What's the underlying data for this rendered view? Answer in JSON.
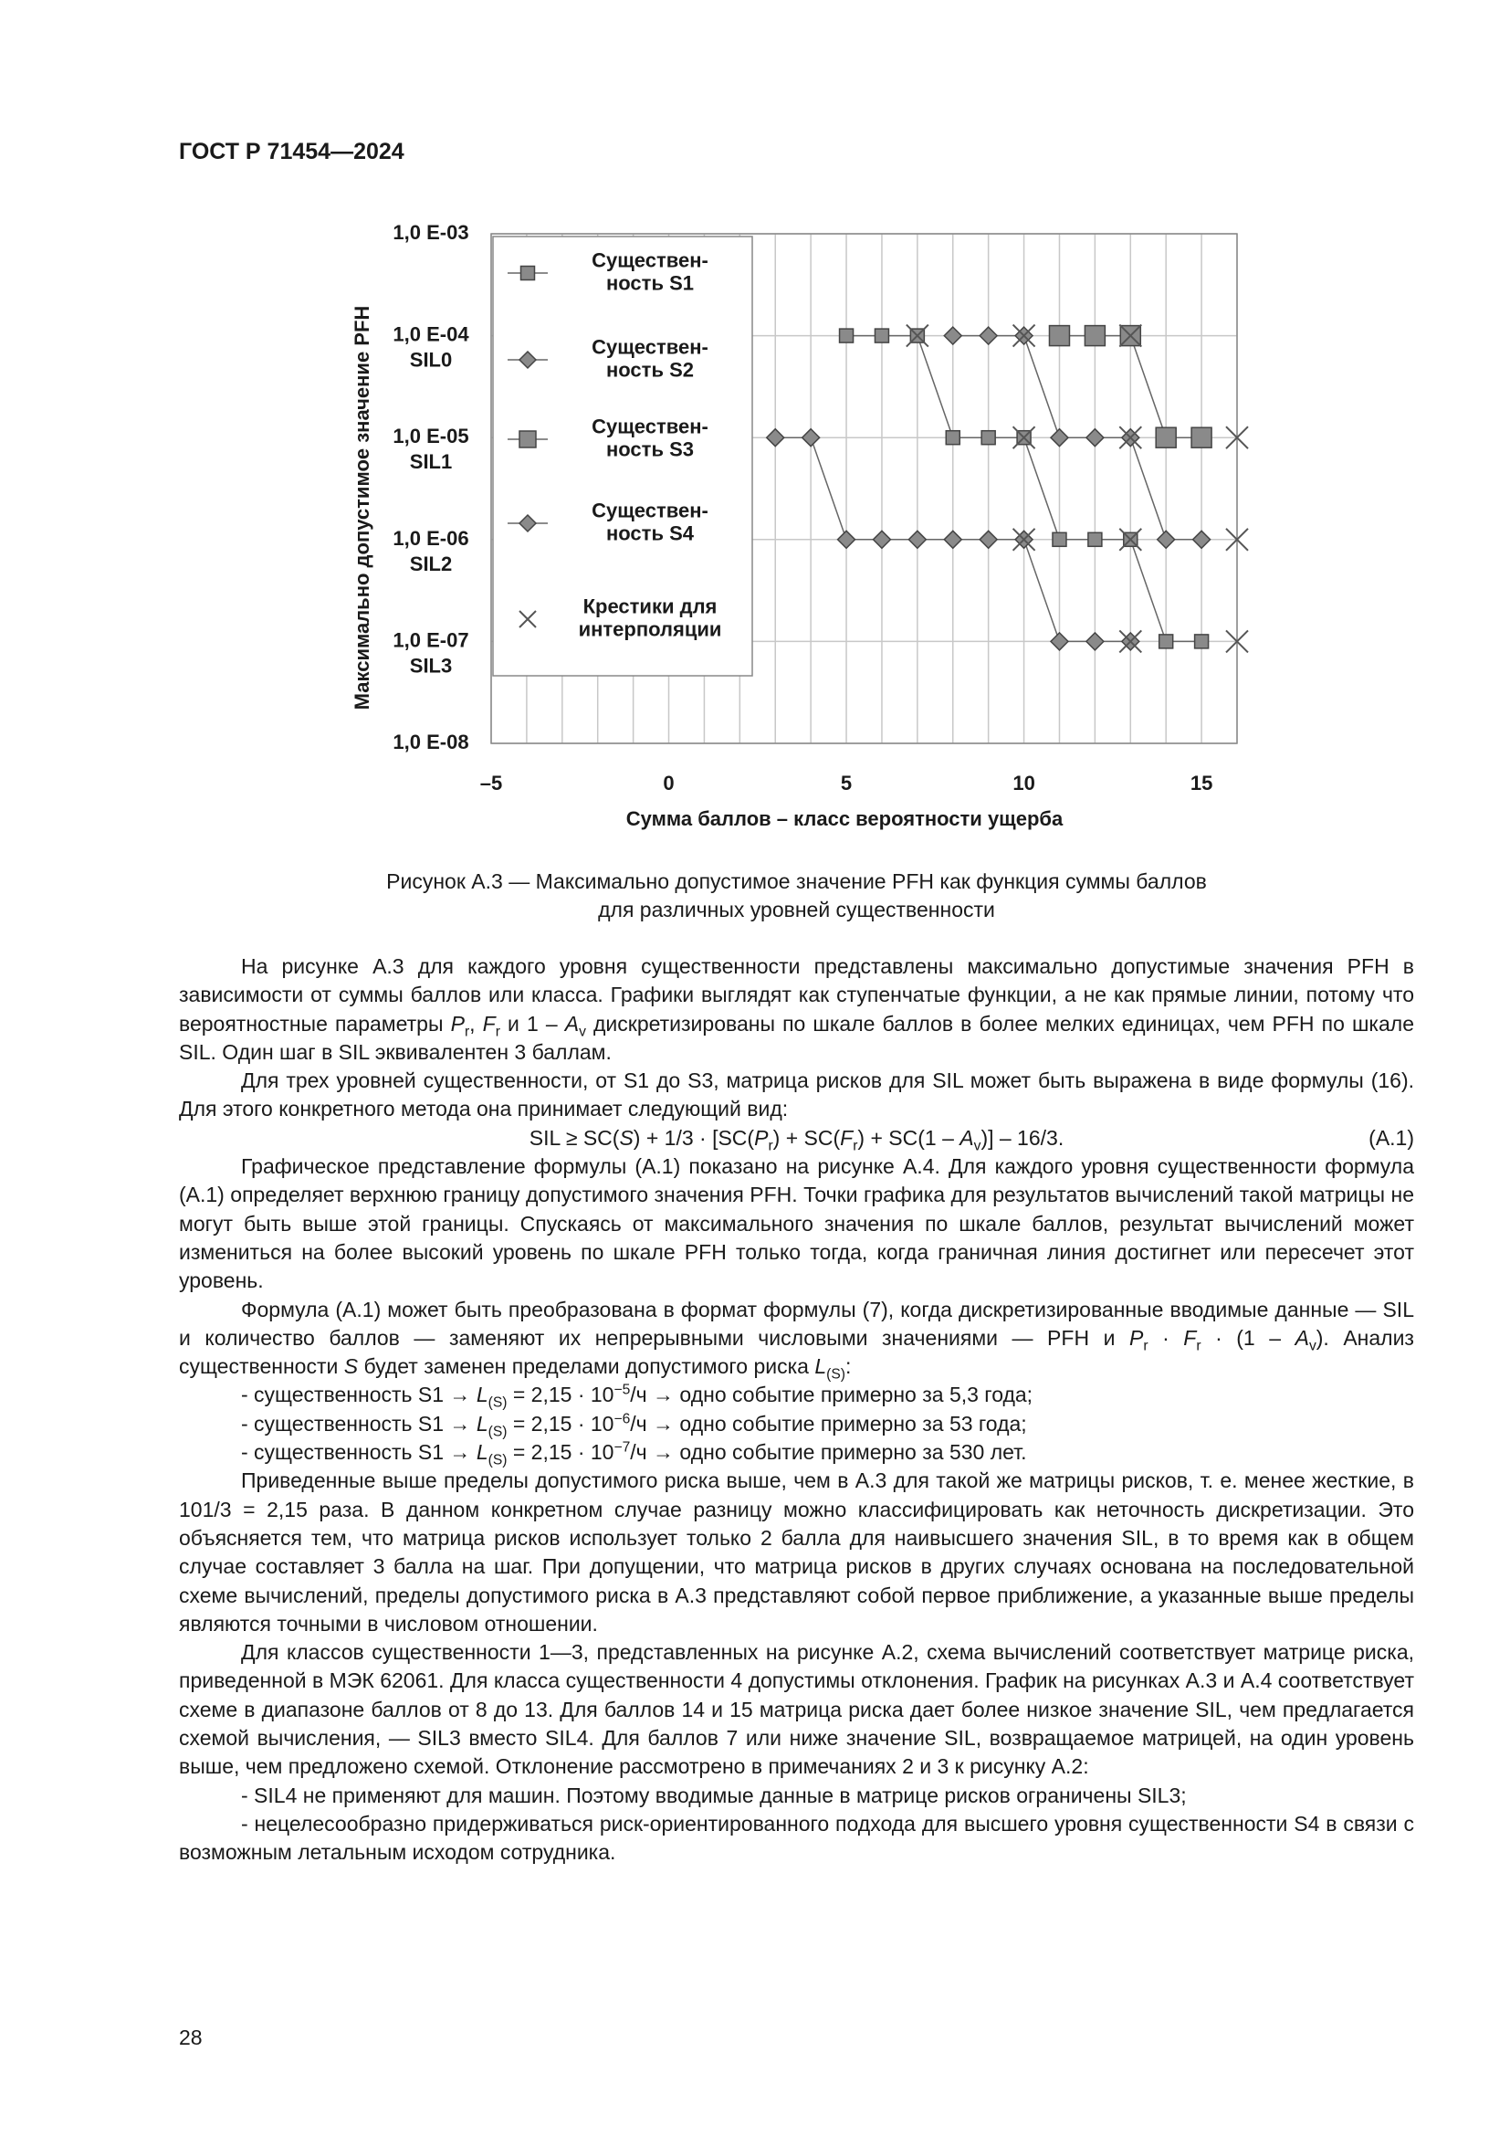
{
  "header": {
    "title": "ГОСТ Р 71454—2024"
  },
  "chart_data": {
    "type": "line",
    "y_label": "Максимально допустимое значение PFH",
    "x_label": "Сумма баллов – класс вероятности ущерба",
    "log_y": true,
    "xlim": [
      -5,
      16
    ],
    "ylim": [
      1e-08,
      0.001
    ],
    "xticks": [
      {
        "value": -5,
        "label": "–5"
      },
      0,
      5,
      10,
      15
    ],
    "yticks": [
      {
        "value": 0.001,
        "label": "1,0 E-03"
      },
      {
        "value": 0.0001,
        "label": "1,0 E-04\nSIL0"
      },
      {
        "value": 1e-05,
        "label": "1,0 E-05\nSIL1"
      },
      {
        "value": 1e-06,
        "label": "1,0 E-06\nSIL2"
      },
      {
        "value": 1e-07,
        "label": "1,0 E-07\nSIL3"
      },
      {
        "value": 1e-08,
        "label": "1,0 E-08"
      }
    ],
    "grid": true,
    "xgrid_step": 1,
    "legend": "upper left",
    "series": [
      {
        "name": "Существен-\nность S1",
        "color": "#8a8a8a",
        "marker": "square",
        "marker_size": 15,
        "line": true,
        "x": [
          5,
          6,
          7,
          8,
          9,
          10,
          11,
          12,
          13,
          14,
          15
        ],
        "values": [
          0.0001,
          0.0001,
          0.0001,
          1e-05,
          1e-05,
          1e-05,
          1e-06,
          1e-06,
          1e-06,
          1e-07,
          1e-07
        ]
      },
      {
        "name": "Существен-\nность S2",
        "color": "#8a8a8a",
        "marker": "diamond",
        "marker_size": 19,
        "line": true,
        "x": [
          8,
          9,
          10,
          11,
          12,
          13,
          14,
          15
        ],
        "values": [
          0.0001,
          0.0001,
          0.0001,
          1e-05,
          1e-05,
          1e-05,
          1e-06,
          1e-06
        ]
      },
      {
        "name": "Существен-\nность S3",
        "color": "#8a8a8a",
        "marker": "square",
        "marker_size": 22,
        "line": true,
        "x": [
          11,
          12,
          13,
          14,
          15
        ],
        "values": [
          0.0001,
          0.0001,
          0.0001,
          1e-05,
          1e-05
        ]
      },
      {
        "name": "Существен-\nность S4",
        "color": "#8a8a8a",
        "marker": "diamond",
        "marker_size": 19,
        "line": true,
        "x": [
          3,
          4,
          5,
          6,
          7,
          8,
          9,
          10,
          11,
          12,
          13
        ],
        "values": [
          1e-05,
          1e-05,
          1e-06,
          1e-06,
          1e-06,
          1e-06,
          1e-06,
          1e-06,
          1e-07,
          1e-07,
          1e-07
        ]
      },
      {
        "name": "Крестики для\nинтерполяции",
        "color": "#555555",
        "marker": "x",
        "marker_size": 24,
        "line": false,
        "x": [
          7,
          10,
          13,
          10,
          13,
          16,
          10,
          13,
          16,
          13,
          16
        ],
        "values": [
          0.0001,
          0.0001,
          0.0001,
          1e-05,
          1e-05,
          1e-05,
          1e-06,
          1e-06,
          1e-06,
          1e-07,
          1e-07
        ]
      }
    ]
  },
  "caption": [
    "Рисунок А.3 — Максимально допустимое значение PFH как функция суммы баллов",
    "для различных уровней существенности"
  ],
  "body": [
    {
      "runs": [
        "На рисунке А.3 для каждого уровня существенности представлены максимально допустимые значения PFH в зависимости от суммы баллов или класса. Графики выглядят как ступенчатые функции, а не как прямые линии, потому что вероятностные параметры ",
        {
          "i": "P"
        },
        {
          "sub": "r"
        },
        ", ",
        {
          "i": "F"
        },
        {
          "sub": "r"
        },
        " и 1 – ",
        {
          "i": "A"
        },
        {
          "sub": "v"
        },
        " дискретизированы по шкале баллов в более мелких единицах, чем PFH по шкале SIL. Один шаг в SIL эквивалентен 3 баллам."
      ]
    },
    {
      "runs": [
        "Для трех уровней существенности, от S1 до S3, матрица рисков для SIL может быть выражена в виде формулы (16). Для этого конкретного метода она принимает следующий вид:"
      ]
    },
    {
      "runs": [
        "SIL ≥ SC(",
        {
          "i": "S"
        },
        ") + 1/3 · [SC(",
        {
          "i": "P"
        },
        {
          "sub": "r"
        },
        ") + SC(",
        {
          "i": "F"
        },
        {
          "sub": "r"
        },
        ") + SC(1 – ",
        {
          "i": "A"
        },
        {
          "sub": "v"
        },
        ")] – 16/3."
      ],
      "number": "(А.1)"
    },
    {
      "runs": [
        "Графическое представление формулы (А.1) показано на рисунке А.4. Для каждого уровня существенности формула (А.1) определяет верхнюю границу допустимого значения PFH. Точки графика для результатов вычислений такой матрицы не могут быть выше этой границы. Спускаясь от максимального значения по шкале баллов, результат вычислений может измениться на более высокий уровень по шкале PFH только тогда, когда граничная линия достигнет или пересечет этот уровень."
      ]
    },
    {
      "runs": [
        "Формула (А.1) может быть преобразована в формат формулы (7), когда дискретизированные вводимые данные — SIL и количество баллов — заменяют их непрерывными числовыми значениями — PFH и ",
        {
          "i": "P"
        },
        {
          "sub": "r"
        },
        " · ",
        {
          "i": "F"
        },
        {
          "sub": "r"
        },
        " · (1 – ",
        {
          "i": "A"
        },
        {
          "sub": "v"
        },
        "). Анализ существенности ",
        {
          "i": "S"
        },
        " будет заменен пределами допустимого риска ",
        {
          "i": "L"
        },
        {
          "sub": "(S)"
        },
        ":"
      ]
    },
    {
      "runs": [
        "- существенность S1 → ",
        {
          "i": "L"
        },
        {
          "sub": "(S)"
        },
        " = 2,15 · 10",
        {
          "sup": "−5"
        },
        "/ч → одно событие примерно за 5,3 года;"
      ]
    },
    {
      "runs": [
        "- существенность S1 → ",
        {
          "i": "L"
        },
        {
          "sub": "(S)"
        },
        " = 2,15 · 10",
        {
          "sup": "−6"
        },
        "/ч → одно событие примерно за 53 года;"
      ]
    },
    {
      "runs": [
        "- существенность S1 → ",
        {
          "i": "L"
        },
        {
          "sub": "(S)"
        },
        " = 2,15 · 10",
        {
          "sup": "−7"
        },
        "/ч → одно событие примерно за 530 лет."
      ]
    },
    {
      "runs": [
        "Приведенные выше пределы допустимого риска выше, чем в А.3 для такой же матрицы рисков, т. е. менее жесткие, в 101/3 = 2,15 раза. В данном конкретном случае разницу можно классифицировать как неточность дискретизации. Это объясняется тем, что матрица рисков использует только 2 балла для наивысшего значения SIL, в то время как в общем случае составляет 3 балла на шаг. При допущении, что матрица рисков в других случаях основана на последовательной схеме вычислений, пределы допустимого риска в А.3 представляют собой первое приближение, а указанные выше пределы являются точными в числовом отношении."
      ]
    },
    {
      "runs": [
        "Для классов существенности 1—3, представленных на рисунке А.2, схема вычислений соответствует матрице риска, приведенной в МЭК 62061. Для класса существенности 4 допустимы отклонения. График на рисунках А.3 и А.4 соответствует схеме в диапазоне баллов от 8 до 13. Для баллов 14 и 15 матрица риска дает более низкое значение SIL, чем предлагается схемой вычисления, — SIL3 вместо SIL4. Для баллов 7 или ниже значение SIL, возвращаемое матрицей, на один уровень выше, чем предложено схемой. Отклонение рассмотрено в примечаниях 2 и 3 к рисунку А.2:"
      ]
    },
    {
      "runs": [
        "- SIL4 не применяют для машин. Поэтому вводимые данные в матрице рисков ограничены SIL3;"
      ]
    },
    {
      "runs": [
        "- нецелесообразно придерживаться риск-ориентированного подхода для высшего уровня существенности S4 в связи с возможным летальным исходом сотрудника."
      ]
    }
  ],
  "page_number": "28"
}
